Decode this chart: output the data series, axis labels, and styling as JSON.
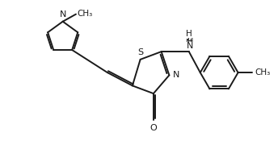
{
  "bg_color": "#ffffff",
  "line_color": "#1a1a1a",
  "line_width": 1.4,
  "figsize": [
    3.44,
    1.9
  ],
  "dpi": 100,
  "xlim": [
    0.0,
    10.0
  ],
  "ylim": [
    0.0,
    5.8
  ]
}
